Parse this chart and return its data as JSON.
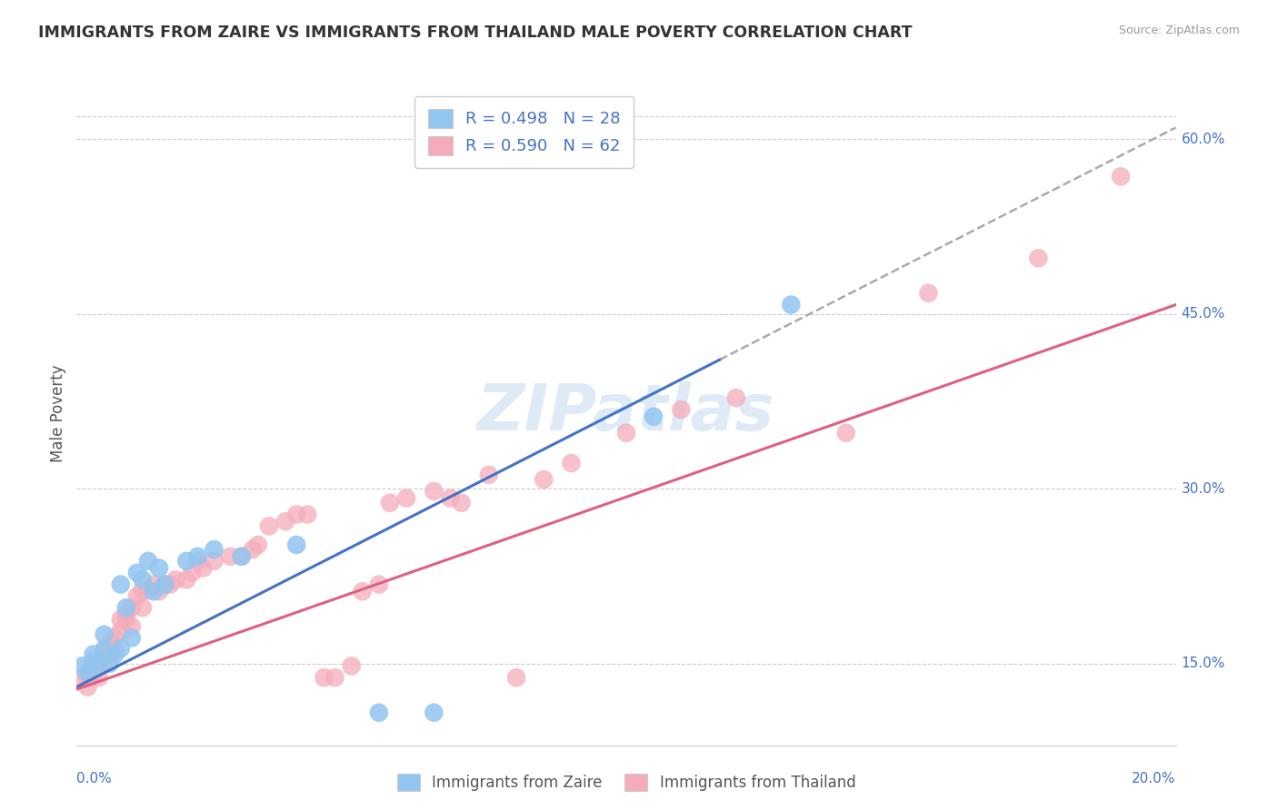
{
  "title": "IMMIGRANTS FROM ZAIRE VS IMMIGRANTS FROM THAILAND MALE POVERTY CORRELATION CHART",
  "source": "Source: ZipAtlas.com",
  "ylabel": "Male Poverty",
  "ylabel_ticks": [
    0.15,
    0.3,
    0.45,
    0.6
  ],
  "ylabel_tick_labels": [
    "15.0%",
    "30.0%",
    "45.0%",
    "60.0%"
  ],
  "xmin": 0.0,
  "xmax": 0.2,
  "ymin": 0.08,
  "ymax": 0.65,
  "zaire_color": "#92C5F0",
  "thailand_color": "#F4ACBA",
  "zaire_line_color": "#4472C4",
  "thailand_line_color": "#E06080",
  "dash_color": "#AAAAAA",
  "zaire_R": 0.498,
  "zaire_N": 28,
  "thailand_R": 0.59,
  "thailand_N": 62,
  "watermark": "ZIPatlas",
  "zaire_points": [
    [
      0.001,
      0.148
    ],
    [
      0.002,
      0.142
    ],
    [
      0.003,
      0.152
    ],
    [
      0.003,
      0.158
    ],
    [
      0.004,
      0.148
    ],
    [
      0.005,
      0.162
    ],
    [
      0.005,
      0.175
    ],
    [
      0.006,
      0.15
    ],
    [
      0.007,
      0.158
    ],
    [
      0.008,
      0.163
    ],
    [
      0.008,
      0.218
    ],
    [
      0.009,
      0.198
    ],
    [
      0.01,
      0.172
    ],
    [
      0.011,
      0.228
    ],
    [
      0.012,
      0.222
    ],
    [
      0.013,
      0.238
    ],
    [
      0.014,
      0.212
    ],
    [
      0.015,
      0.232
    ],
    [
      0.016,
      0.218
    ],
    [
      0.02,
      0.238
    ],
    [
      0.022,
      0.242
    ],
    [
      0.025,
      0.248
    ],
    [
      0.03,
      0.242
    ],
    [
      0.04,
      0.252
    ],
    [
      0.055,
      0.108
    ],
    [
      0.065,
      0.108
    ],
    [
      0.105,
      0.362
    ],
    [
      0.13,
      0.458
    ]
  ],
  "thailand_points": [
    [
      0.001,
      0.138
    ],
    [
      0.002,
      0.13
    ],
    [
      0.002,
      0.138
    ],
    [
      0.003,
      0.142
    ],
    [
      0.003,
      0.148
    ],
    [
      0.004,
      0.138
    ],
    [
      0.004,
      0.152
    ],
    [
      0.005,
      0.152
    ],
    [
      0.005,
      0.162
    ],
    [
      0.006,
      0.158
    ],
    [
      0.006,
      0.168
    ],
    [
      0.007,
      0.162
    ],
    [
      0.007,
      0.172
    ],
    [
      0.008,
      0.178
    ],
    [
      0.008,
      0.188
    ],
    [
      0.009,
      0.188
    ],
    [
      0.009,
      0.193
    ],
    [
      0.01,
      0.182
    ],
    [
      0.01,
      0.198
    ],
    [
      0.011,
      0.208
    ],
    [
      0.012,
      0.198
    ],
    [
      0.012,
      0.213
    ],
    [
      0.013,
      0.213
    ],
    [
      0.014,
      0.218
    ],
    [
      0.015,
      0.212
    ],
    [
      0.016,
      0.218
    ],
    [
      0.017,
      0.218
    ],
    [
      0.018,
      0.222
    ],
    [
      0.02,
      0.222
    ],
    [
      0.021,
      0.228
    ],
    [
      0.022,
      0.238
    ],
    [
      0.023,
      0.232
    ],
    [
      0.025,
      0.238
    ],
    [
      0.028,
      0.242
    ],
    [
      0.03,
      0.242
    ],
    [
      0.032,
      0.248
    ],
    [
      0.033,
      0.252
    ],
    [
      0.035,
      0.268
    ],
    [
      0.038,
      0.272
    ],
    [
      0.04,
      0.278
    ],
    [
      0.042,
      0.278
    ],
    [
      0.045,
      0.138
    ],
    [
      0.047,
      0.138
    ],
    [
      0.05,
      0.148
    ],
    [
      0.052,
      0.212
    ],
    [
      0.055,
      0.218
    ],
    [
      0.057,
      0.288
    ],
    [
      0.06,
      0.292
    ],
    [
      0.065,
      0.298
    ],
    [
      0.068,
      0.292
    ],
    [
      0.07,
      0.288
    ],
    [
      0.075,
      0.312
    ],
    [
      0.08,
      0.138
    ],
    [
      0.085,
      0.308
    ],
    [
      0.09,
      0.322
    ],
    [
      0.1,
      0.348
    ],
    [
      0.11,
      0.368
    ],
    [
      0.12,
      0.378
    ],
    [
      0.14,
      0.348
    ],
    [
      0.155,
      0.468
    ],
    [
      0.175,
      0.498
    ],
    [
      0.19,
      0.568
    ]
  ],
  "zaire_line_intercept": 0.13,
  "zaire_line_slope": 2.4,
  "thailand_line_intercept": 0.128,
  "thailand_line_slope": 1.65,
  "dash_line_x_start": 0.117,
  "dash_line_x_end": 0.2
}
